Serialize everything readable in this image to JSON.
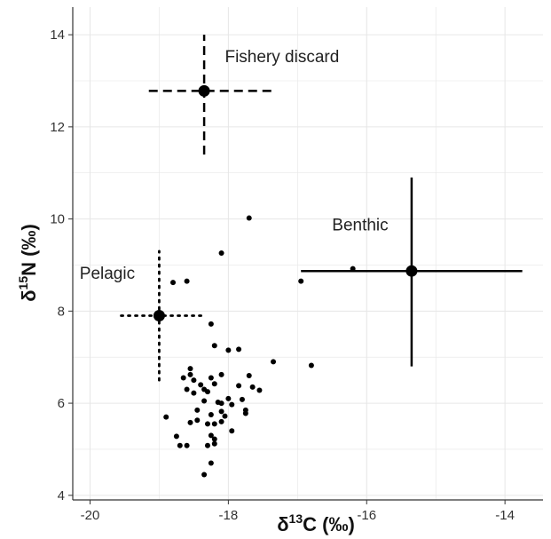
{
  "chart_data": {
    "type": "scatter",
    "title": "",
    "xlabel": {
      "prefix": "δ",
      "sup": "13",
      "suffix": "C (‰)"
    },
    "ylabel": {
      "prefix": "δ",
      "sup": "15",
      "suffix": "N (‰)"
    },
    "xlim": [
      -20.25,
      -13.45
    ],
    "ylim": [
      3.9,
      14.6
    ],
    "xticks": [
      -20,
      -18,
      -16,
      -14
    ],
    "yticks": [
      4,
      6,
      8,
      10,
      12,
      14
    ],
    "grid": true,
    "colors": {
      "points": "#000000",
      "grid": "#e6e6e6",
      "axis": "#333333"
    },
    "sources": [
      {
        "name": "Fishery discard",
        "x": -18.35,
        "y": 12.78,
        "x_range": [
          -19.15,
          -17.35
        ],
        "y_range": [
          11.4,
          14.0
        ],
        "line_style": "dashed",
        "label_at": [
          -18.05,
          13.4
        ]
      },
      {
        "name": "Benthic",
        "x": -15.35,
        "y": 8.87,
        "x_range": [
          -16.95,
          -13.75
        ],
        "y_range": [
          6.8,
          10.9
        ],
        "line_style": "solid",
        "label_at": [
          -16.5,
          9.75
        ]
      },
      {
        "name": "Pelagic",
        "x": -19.0,
        "y": 7.9,
        "x_range": [
          -19.55,
          -18.35
        ],
        "y_range": [
          6.5,
          9.3
        ],
        "line_style": "dotted",
        "label_at": [
          -20.15,
          8.7
        ]
      }
    ],
    "points": [
      [
        -17.7,
        10.02
      ],
      [
        -18.1,
        9.26
      ],
      [
        -18.8,
        8.62
      ],
      [
        -18.6,
        8.65
      ],
      [
        -16.95,
        8.65
      ],
      [
        -16.2,
        8.92
      ],
      [
        -18.25,
        7.72
      ],
      [
        -17.35,
        6.9
      ],
      [
        -16.8,
        6.82
      ],
      [
        -18.2,
        7.25
      ],
      [
        -18.0,
        7.15
      ],
      [
        -17.85,
        7.17
      ],
      [
        -18.55,
        6.75
      ],
      [
        -18.55,
        6.62
      ],
      [
        -18.65,
        6.55
      ],
      [
        -18.5,
        6.5
      ],
      [
        -18.25,
        6.55
      ],
      [
        -18.1,
        6.62
      ],
      [
        -17.7,
        6.6
      ],
      [
        -17.85,
        6.38
      ],
      [
        -17.65,
        6.35
      ],
      [
        -17.55,
        6.28
      ],
      [
        -18.35,
        6.3
      ],
      [
        -18.4,
        6.4
      ],
      [
        -18.2,
        6.42
      ],
      [
        -18.6,
        6.3
      ],
      [
        -18.5,
        6.22
      ],
      [
        -18.3,
        6.25
      ],
      [
        -18.0,
        6.1
      ],
      [
        -17.8,
        6.08
      ],
      [
        -18.1,
        6.0
      ],
      [
        -17.95,
        5.97
      ],
      [
        -17.75,
        5.85
      ],
      [
        -17.75,
        5.78
      ],
      [
        -18.35,
        6.05
      ],
      [
        -18.15,
        6.02
      ],
      [
        -18.1,
        5.82
      ],
      [
        -18.45,
        5.85
      ],
      [
        -18.25,
        5.75
      ],
      [
        -18.05,
        5.72
      ],
      [
        -18.9,
        5.7
      ],
      [
        -18.45,
        5.63
      ],
      [
        -18.55,
        5.58
      ],
      [
        -18.3,
        5.55
      ],
      [
        -18.1,
        5.6
      ],
      [
        -18.2,
        5.55
      ],
      [
        -17.95,
        5.4
      ],
      [
        -18.75,
        5.28
      ],
      [
        -18.25,
        5.3
      ],
      [
        -18.2,
        5.22
      ],
      [
        -18.7,
        5.08
      ],
      [
        -18.6,
        5.08
      ],
      [
        -18.3,
        5.08
      ],
      [
        -18.2,
        5.12
      ],
      [
        -18.25,
        4.7
      ],
      [
        -18.35,
        4.45
      ]
    ]
  }
}
